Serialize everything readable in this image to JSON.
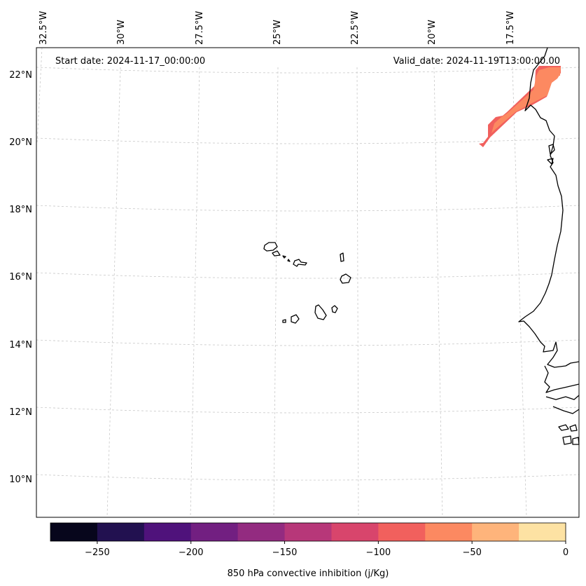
{
  "map": {
    "start_date": "Start date: 2024-11-17_00:00:00",
    "valid_date": "Valid_date: 2024-11-19T13:00:00.00",
    "lon_labels": [
      "32.5°W",
      "30°W",
      "27.5°W",
      "25°W",
      "22.5°W",
      "20°W",
      "17.5°W"
    ],
    "lat_labels": [
      "22°N",
      "20°N",
      "18°N",
      "16°N",
      "14°N",
      "12°N",
      "10°N"
    ],
    "features": [
      "Cape Verde islands",
      "West African coastline"
    ]
  },
  "colorbar": {
    "label": "850 hPa convective inhibition (j/Kg)",
    "ticks": [
      "−250",
      "−200",
      "−150",
      "−100",
      "−50",
      "0"
    ],
    "range": [
      -275,
      0
    ],
    "step": 25,
    "colors": [
      "#07061c",
      "#221150",
      "#4f127b",
      "#721f81",
      "#932b80",
      "#b73779",
      "#d8456c",
      "#f1605d",
      "#fc8961",
      "#feb47b",
      "#fde2a3"
    ]
  },
  "field_colors": {
    "band_edge": "#f1605d",
    "band_core": "#fc8961"
  }
}
